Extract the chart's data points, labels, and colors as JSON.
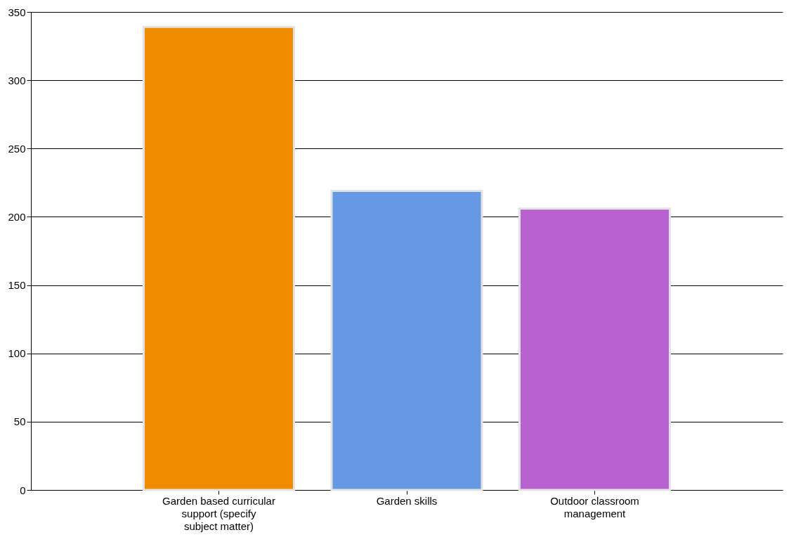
{
  "chart_data": {
    "type": "bar",
    "categories": [
      "Garden based curricular support (specify subject matter)",
      "Garden skills",
      "Outdoor classroom management"
    ],
    "values": [
      339,
      219,
      206
    ],
    "colors": [
      "#ef8c00",
      "#6699e3",
      "#b862d2"
    ],
    "ylim": [
      0,
      350
    ],
    "yticks": [
      0,
      50,
      100,
      150,
      200,
      250,
      300,
      350
    ],
    "grid": "y"
  }
}
